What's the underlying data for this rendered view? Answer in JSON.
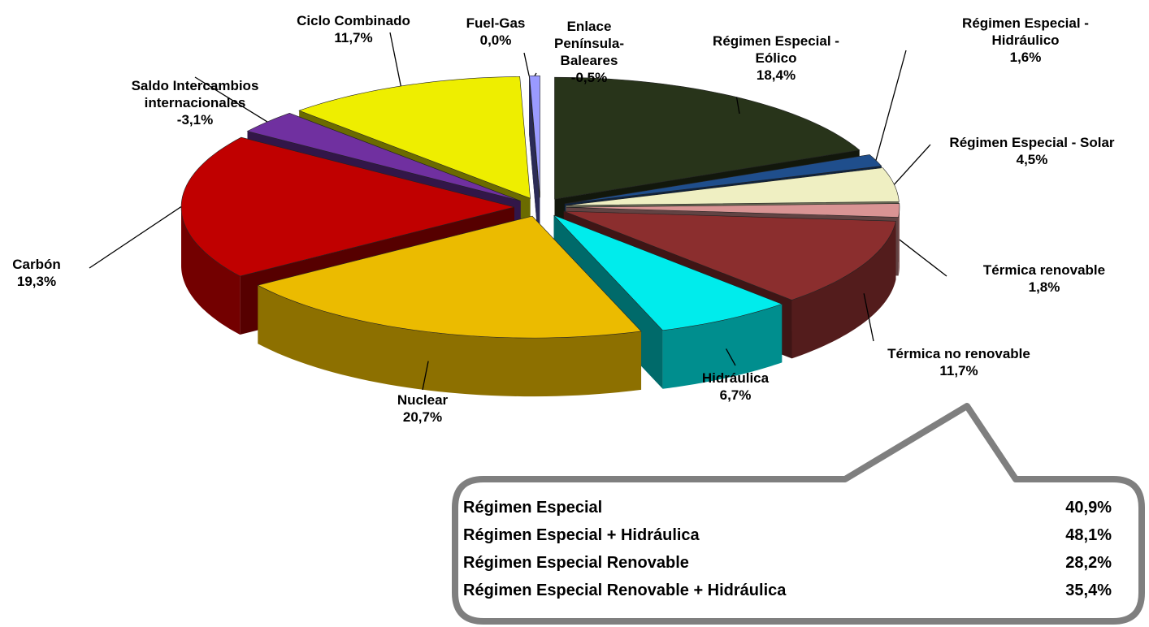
{
  "chart_data": {
    "type": "pie3d",
    "categories": [
      "Régimen Especial - Eólico",
      "Régimen Especial - Hidráulico",
      "Régimen Especial - Solar",
      "Térmica renovable",
      "Térmica no renovable",
      "Hidráulica",
      "Nuclear",
      "Carbón",
      "Saldo Intercambios internacionales",
      "Ciclo Combinado",
      "Fuel-Gas",
      "Enlace Península-Baleares"
    ],
    "values": [
      18.4,
      1.6,
      4.5,
      1.8,
      11.7,
      6.7,
      20.7,
      19.3,
      -3.1,
      11.7,
      0.0,
      -0.5
    ],
    "value_labels": [
      "18,4%",
      "1,6%",
      "4,5%",
      "1,8%",
      "11,7%",
      "6,7%",
      "20,7%",
      "19,3%",
      "-3,1%",
      "11,7%",
      "0,0%",
      "-0,5%"
    ],
    "colors": [
      "#28341a",
      "#1f4e8c",
      "#efefc2",
      "#d99494",
      "#8b2e2e",
      "#00ecec",
      "#ebbb00",
      "#c00000",
      "#7030a0",
      "#eeee00",
      "#6060c0",
      "#9a9aff"
    ]
  },
  "summary": {
    "rows": [
      {
        "label": "Régimen Especial",
        "value": "40,9%"
      },
      {
        "label": "Régimen Especial + Hidráulica",
        "value": "48,1%"
      },
      {
        "label": "Régimen Especial Renovable",
        "value": "28,2%"
      },
      {
        "label": "Régimen Especial Renovable + Hidráulica",
        "value": "35,4%"
      }
    ]
  }
}
